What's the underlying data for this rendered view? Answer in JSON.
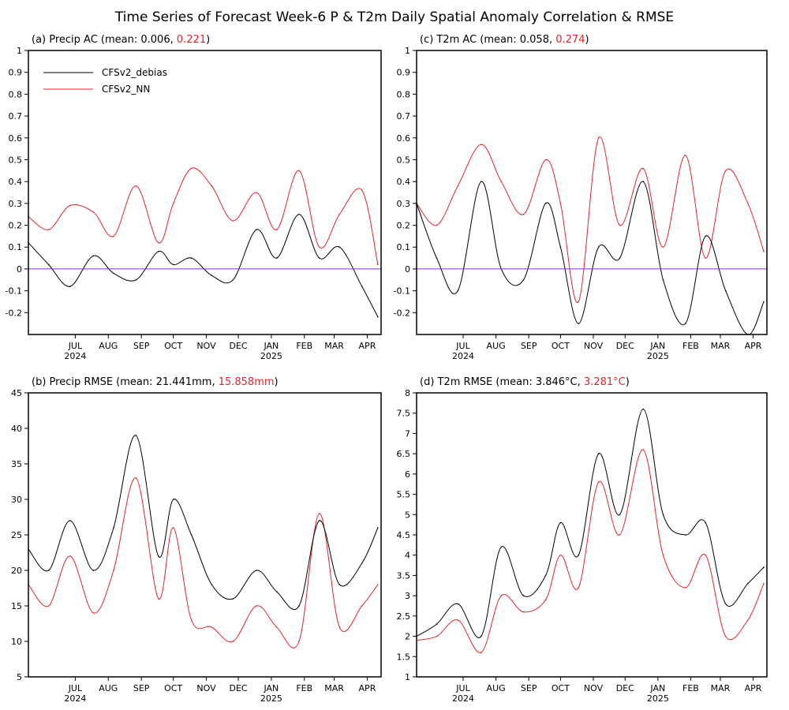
{
  "title": "Time Series of Forecast Week-6 P & T2m Daily Spatial Anomaly Correlation & RMSE",
  "legend": [
    {
      "label": "CFSv2_debias",
      "color": "#000000"
    },
    {
      "label": "CFSv2_NN",
      "color": "#e8232a"
    }
  ],
  "colors": {
    "debias": "#000000",
    "nn": "#e8232a",
    "zero_line": "#8a2be2"
  },
  "x_axis": {
    "months": [
      "JUL",
      "AUG",
      "SEP",
      "OCT",
      "NOV",
      "DEC",
      "JAN",
      "FEB",
      "MAR",
      "APR"
    ],
    "year_labels": [
      {
        "month": "JUL",
        "year": "2024"
      },
      {
        "month": "JAN",
        "year": "2025"
      }
    ]
  },
  "panels": [
    {
      "id": "a",
      "prefix": "(a) Precip AC (mean: 0.006, ",
      "nn_mean": "0.221",
      "suffix": ")",
      "ylim": [
        -0.3,
        1.0
      ],
      "yticks": [
        "1",
        "0.9",
        "0.8",
        "0.7",
        "0.6",
        "0.5",
        "0.4",
        "0.3",
        "0.2",
        "0.1",
        "0",
        "-0.1",
        "-0.2"
      ],
      "zero_line": true
    },
    {
      "id": "c",
      "prefix": "(c) T2m AC (mean: 0.058, ",
      "nn_mean": "0.274",
      "suffix": ")",
      "ylim": [
        -0.3,
        1.0
      ],
      "yticks": [
        "1",
        "0.9",
        "0.8",
        "0.7",
        "0.6",
        "0.5",
        "0.4",
        "0.3",
        "0.2",
        "0.1",
        "0",
        "-0.1",
        "-0.2"
      ],
      "zero_line": true
    },
    {
      "id": "b",
      "prefix": "(b) Precip RMSE (mean: 21.441mm, ",
      "nn_mean": "15.858mm",
      "suffix": ")",
      "ylim": [
        5,
        45
      ],
      "yticks": [
        "45",
        "40",
        "35",
        "30",
        "25",
        "20",
        "15",
        "10",
        "5"
      ],
      "zero_line": false
    },
    {
      "id": "d",
      "prefix": "(d) T2m RMSE (mean: 3.846°C, ",
      "nn_mean": "3.281°C",
      "suffix": ")",
      "ylim": [
        1,
        8
      ],
      "yticks": [
        "8",
        "7.5",
        "7",
        "6.5",
        "6",
        "5.5",
        "5",
        "4.5",
        "4",
        "3.5",
        "3",
        "2.5",
        "2",
        "1.5",
        "1"
      ],
      "zero_line": false
    }
  ],
  "chart_data": [
    {
      "type": "line",
      "panel": "a",
      "x": [
        "2024-06-01",
        "2024-06-20",
        "2024-07-10",
        "2024-08-01",
        "2024-08-20",
        "2024-09-10",
        "2024-10-01",
        "2024-10-15",
        "2024-11-01",
        "2024-11-20",
        "2024-12-10",
        "2025-01-01",
        "2025-01-20",
        "2025-02-10",
        "2025-03-01",
        "2025-03-20",
        "2025-04-10",
        "2025-04-25"
      ],
      "series": [
        {
          "name": "CFSv2_debias",
          "values": [
            0.12,
            0.02,
            -0.08,
            0.06,
            -0.02,
            -0.05,
            0.08,
            0.02,
            0.05,
            -0.03,
            -0.05,
            0.18,
            0.05,
            0.25,
            0.05,
            0.1,
            -0.08,
            -0.22
          ]
        },
        {
          "name": "CFSv2_NN",
          "values": [
            0.24,
            0.18,
            0.29,
            0.26,
            0.15,
            0.38,
            0.12,
            0.3,
            0.46,
            0.38,
            0.22,
            0.35,
            0.18,
            0.45,
            0.1,
            0.25,
            0.36,
            0.02
          ]
        }
      ]
    },
    {
      "type": "line",
      "panel": "c",
      "x": [
        "2024-06-01",
        "2024-06-20",
        "2024-07-10",
        "2024-08-01",
        "2024-08-20",
        "2024-09-10",
        "2024-10-01",
        "2024-10-15",
        "2024-11-01",
        "2024-11-20",
        "2024-12-10",
        "2025-01-01",
        "2025-01-20",
        "2025-02-10",
        "2025-03-01",
        "2025-03-20",
        "2025-04-10",
        "2025-04-25"
      ],
      "series": [
        {
          "name": "CFSv2_debias",
          "values": [
            0.3,
            0.05,
            -0.1,
            0.4,
            0.0,
            -0.05,
            0.3,
            0.1,
            -0.25,
            0.1,
            0.05,
            0.4,
            -0.05,
            -0.25,
            0.15,
            -0.1,
            -0.3,
            -0.15
          ]
        },
        {
          "name": "CFSv2_NN",
          "values": [
            0.3,
            0.2,
            0.38,
            0.57,
            0.4,
            0.25,
            0.5,
            0.3,
            -0.15,
            0.6,
            0.2,
            0.46,
            0.1,
            0.52,
            0.05,
            0.45,
            0.3,
            0.08
          ]
        }
      ]
    },
    {
      "type": "line",
      "panel": "b",
      "x": [
        "2024-06-01",
        "2024-06-20",
        "2024-07-10",
        "2024-08-01",
        "2024-08-20",
        "2024-09-10",
        "2024-10-01",
        "2024-10-15",
        "2024-11-01",
        "2024-11-20",
        "2024-12-10",
        "2025-01-01",
        "2025-01-20",
        "2025-02-10",
        "2025-03-01",
        "2025-03-20",
        "2025-04-10",
        "2025-04-25"
      ],
      "series": [
        {
          "name": "CFSv2_debias",
          "values": [
            23,
            20,
            27,
            20,
            26,
            39,
            22,
            30,
            25,
            18,
            16,
            20,
            17,
            15,
            27,
            18,
            21,
            26
          ]
        },
        {
          "name": "CFSv2_NN",
          "values": [
            18,
            15,
            22,
            14,
            20,
            33,
            16,
            26,
            13,
            12,
            10,
            15,
            12,
            10,
            28,
            12,
            15,
            18
          ]
        }
      ]
    },
    {
      "type": "line",
      "panel": "d",
      "x": [
        "2024-06-01",
        "2024-06-20",
        "2024-07-10",
        "2024-08-01",
        "2024-08-20",
        "2024-09-10",
        "2024-10-01",
        "2024-10-15",
        "2024-11-01",
        "2024-11-20",
        "2024-12-10",
        "2025-01-01",
        "2025-01-20",
        "2025-02-10",
        "2025-03-01",
        "2025-03-20",
        "2025-04-10",
        "2025-04-25"
      ],
      "series": [
        {
          "name": "CFSv2_debias",
          "values": [
            2.0,
            2.3,
            2.8,
            2.0,
            4.2,
            3.0,
            3.5,
            4.8,
            4.0,
            6.5,
            5.0,
            7.6,
            5.0,
            4.5,
            4.8,
            2.8,
            3.3,
            3.7
          ]
        },
        {
          "name": "CFSv2_NN",
          "values": [
            1.9,
            2.0,
            2.4,
            1.6,
            3.0,
            2.6,
            2.9,
            4.0,
            3.2,
            5.8,
            4.5,
            6.6,
            4.0,
            3.2,
            4.0,
            2.0,
            2.4,
            3.3
          ]
        }
      ]
    }
  ]
}
